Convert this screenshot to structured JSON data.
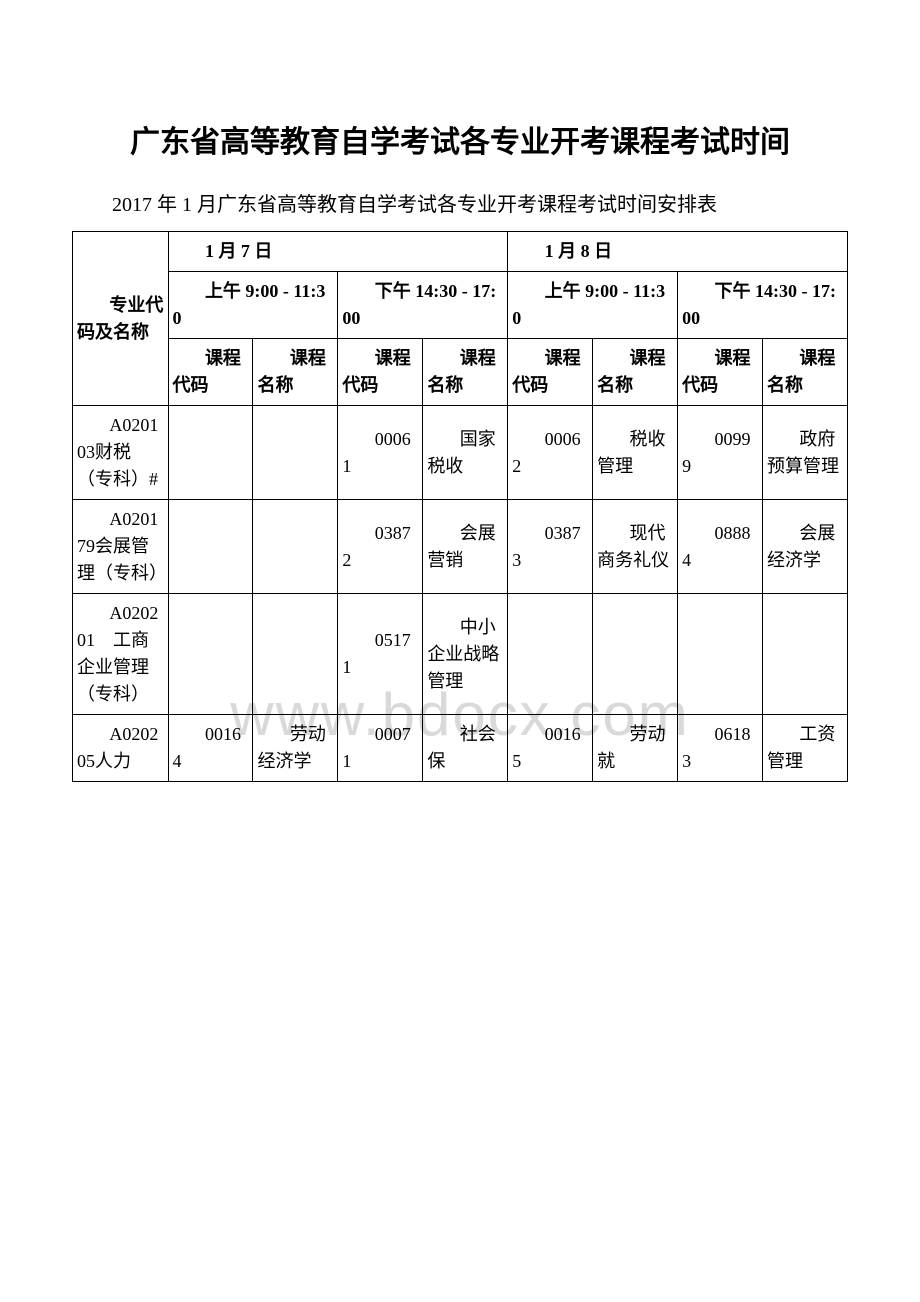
{
  "title": "广东省高等教育自学考试各专业开考课程考试时间",
  "subtitle": "2017 年 1 月广东省高等教育自学考试各专业开考课程考试时间安排表",
  "watermark": "www.bdocx.com",
  "header": {
    "col_major": "专业代码及名称",
    "day1": "1 月 7 日",
    "day2": "1 月 8 日",
    "am": "上午 9:00 - 11:30",
    "pm": "下午 14:30 - 17:00",
    "course_code": "课程代码",
    "course_name": "课程名称"
  },
  "rows": [
    {
      "major": "A020103财税（专科）#",
      "d1am_code": "",
      "d1am_name": "",
      "d1pm_code": "00061",
      "d1pm_name": "国家税收",
      "d2am_code": "00062",
      "d2am_name": "税收管理",
      "d2pm_code": "00999",
      "d2pm_name": "政府预算管理"
    },
    {
      "major": "A020179会展管理（专科）",
      "d1am_code": "",
      "d1am_name": "",
      "d1pm_code": "03872",
      "d1pm_name": "会展营销",
      "d2am_code": "03873",
      "d2am_name": "现代商务礼仪",
      "d2pm_code": "08884",
      "d2pm_name": "会展经济学"
    },
    {
      "major": "A020201　工商企业管理（专科）",
      "d1am_code": "",
      "d1am_name": "",
      "d1pm_code": "05171",
      "d1pm_name": "中小企业战略管理",
      "d2am_code": "",
      "d2am_name": "",
      "d2pm_code": "",
      "d2pm_name": ""
    },
    {
      "major": "A020205人力",
      "d1am_code": "00164",
      "d1am_name": "劳动经济学",
      "d1pm_code": "00071",
      "d1pm_name": "社会保",
      "d2am_code": "00165",
      "d2am_name": "劳动就",
      "d2pm_code": "06183",
      "d2pm_name": "工资管理"
    }
  ]
}
